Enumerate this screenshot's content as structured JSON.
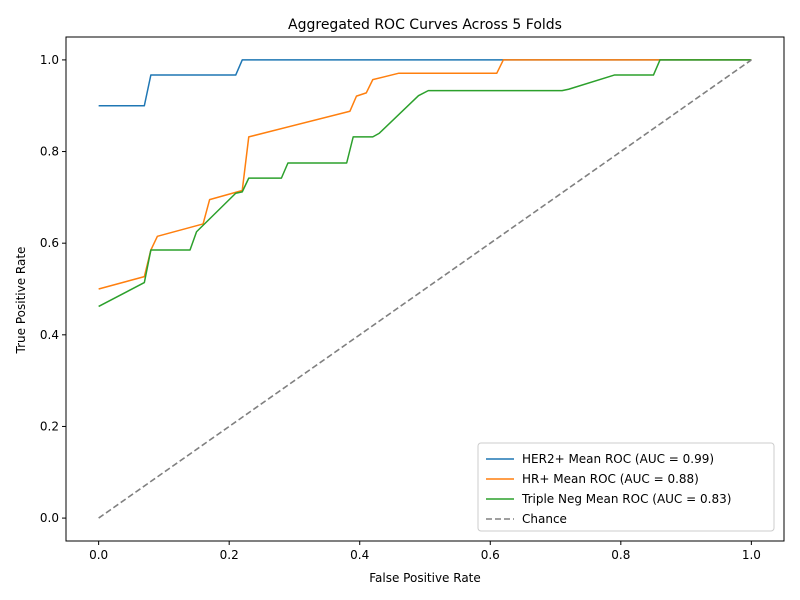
{
  "chart_data": {
    "type": "line",
    "title": "Aggregated ROC Curves Across 5 Folds",
    "xlabel": "False Positive Rate",
    "ylabel": "True Positive Rate",
    "xlim": [
      -0.05,
      1.05
    ],
    "ylim": [
      -0.05,
      1.05
    ],
    "xticks": [
      "0.0",
      "0.2",
      "0.4",
      "0.6",
      "0.8",
      "1.0"
    ],
    "yticks": [
      "0.0",
      "0.2",
      "0.4",
      "0.6",
      "0.8",
      "1.0"
    ],
    "grid": false,
    "legend_position": "lower-right",
    "series": [
      {
        "name": "HER2+ Mean ROC (AUC = 0.99)",
        "color": "#1f77b4",
        "dash": "solid",
        "points": [
          [
            0.0,
            0.9
          ],
          [
            0.07,
            0.9
          ],
          [
            0.08,
            0.967
          ],
          [
            0.21,
            0.967
          ],
          [
            0.22,
            1.0
          ],
          [
            1.0,
            1.0
          ]
        ]
      },
      {
        "name": "HR+ Mean ROC (AUC = 0.88)",
        "color": "#ff7f0e",
        "dash": "solid",
        "points": [
          [
            0.0,
            0.5
          ],
          [
            0.07,
            0.527
          ],
          [
            0.08,
            0.585
          ],
          [
            0.09,
            0.615
          ],
          [
            0.16,
            0.642
          ],
          [
            0.17,
            0.695
          ],
          [
            0.22,
            0.715
          ],
          [
            0.23,
            0.832
          ],
          [
            0.385,
            0.888
          ],
          [
            0.395,
            0.921
          ],
          [
            0.41,
            0.928
          ],
          [
            0.42,
            0.957
          ],
          [
            0.46,
            0.971
          ],
          [
            0.61,
            0.971
          ],
          [
            0.62,
            1.0
          ],
          [
            1.0,
            1.0
          ]
        ]
      },
      {
        "name": "Triple Neg Mean ROC (AUC = 0.83)",
        "color": "#2ca02c",
        "dash": "solid",
        "points": [
          [
            0.0,
            0.462
          ],
          [
            0.07,
            0.514
          ],
          [
            0.08,
            0.585
          ],
          [
            0.14,
            0.585
          ],
          [
            0.15,
            0.625
          ],
          [
            0.21,
            0.709
          ],
          [
            0.22,
            0.712
          ],
          [
            0.23,
            0.742
          ],
          [
            0.28,
            0.742
          ],
          [
            0.29,
            0.775
          ],
          [
            0.38,
            0.775
          ],
          [
            0.39,
            0.832
          ],
          [
            0.42,
            0.832
          ],
          [
            0.43,
            0.84
          ],
          [
            0.49,
            0.922
          ],
          [
            0.505,
            0.933
          ],
          [
            0.71,
            0.933
          ],
          [
            0.72,
            0.936
          ],
          [
            0.79,
            0.967
          ],
          [
            0.85,
            0.967
          ],
          [
            0.86,
            1.0
          ],
          [
            1.0,
            1.0
          ]
        ]
      },
      {
        "name": "Chance",
        "color": "#808080",
        "dash": "dashed",
        "points": [
          [
            0.0,
            0.0
          ],
          [
            1.0,
            1.0
          ]
        ]
      }
    ]
  }
}
